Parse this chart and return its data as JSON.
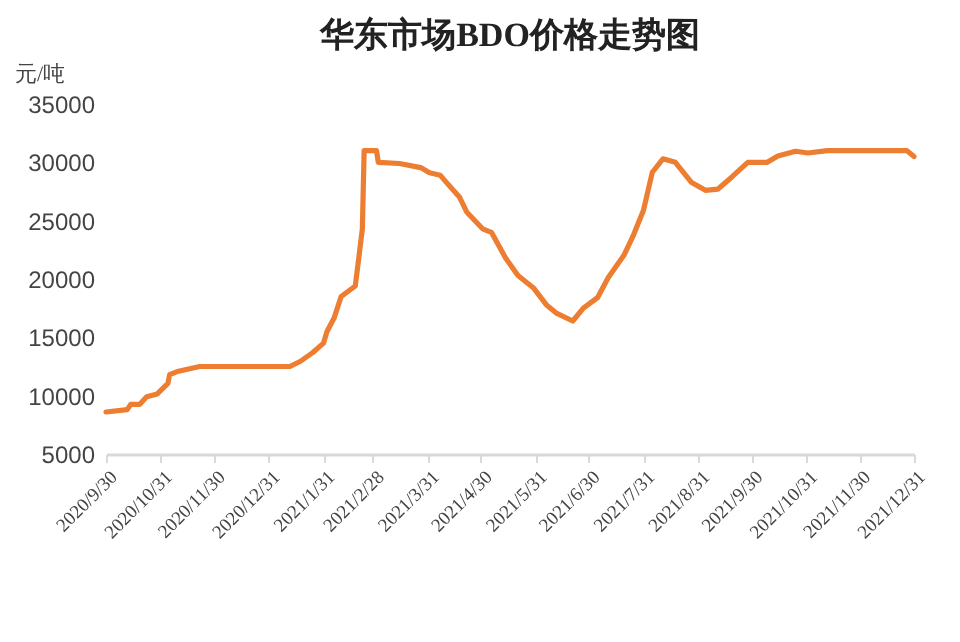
{
  "chart_data": {
    "type": "line",
    "title": "华东市场BDO价格走势图",
    "ylabel": "元/吨",
    "x": [
      "2020-09-30",
      "2020-10-12",
      "2020-10-14",
      "2020-10-19",
      "2020-10-23",
      "2020-10-29",
      "2020-11-04",
      "2020-11-05",
      "2020-11-10",
      "2020-11-22",
      "2021-01-12",
      "2021-01-18",
      "2021-01-25",
      "2021-01-31",
      "2021-02-02",
      "2021-02-06",
      "2021-02-10",
      "2021-02-18",
      "2021-02-22",
      "2021-02-23",
      "2021-03-02",
      "2021-03-03",
      "2021-03-15",
      "2021-03-27",
      "2021-04-01",
      "2021-04-07",
      "2021-04-11",
      "2021-04-18",
      "2021-04-22",
      "2021-05-01",
      "2021-05-06",
      "2021-05-14",
      "2021-05-21",
      "2021-05-30",
      "2021-06-06",
      "2021-06-12",
      "2021-06-21",
      "2021-06-27",
      "2021-07-05",
      "2021-07-11",
      "2021-07-20",
      "2021-07-25",
      "2021-07-31",
      "2021-08-05",
      "2021-08-11",
      "2021-08-18",
      "2021-08-27",
      "2021-09-04",
      "2021-09-11",
      "2021-09-19",
      "2021-09-28",
      "2021-10-09",
      "2021-10-15",
      "2021-10-25",
      "2021-11-01",
      "2021-11-12",
      "2021-12-27",
      "2021-12-31"
    ],
    "series": [
      {
        "color": "#ed7d31",
        "values": [
          8600,
          8800,
          9250,
          9250,
          9900,
          10150,
          11050,
          11800,
          12100,
          12500,
          12500,
          12950,
          13700,
          14500,
          15500,
          16650,
          18500,
          19400,
          24300,
          31000,
          31000,
          30000,
          29900,
          29550,
          29100,
          28900,
          28200,
          27000,
          25750,
          24300,
          24000,
          21800,
          20300,
          19200,
          17800,
          17050,
          16400,
          17500,
          18400,
          20100,
          22050,
          23650,
          25900,
          29150,
          30300,
          30000,
          28300,
          27600,
          27700,
          28750,
          30000,
          30000,
          30550,
          30950,
          30800,
          31000,
          31000,
          30500
        ]
      }
    ],
    "xlim": [
      "2020-09-30",
      "2021-12-31"
    ],
    "xticks": [
      {
        "value": "2020-09-30",
        "label": "2020/9/30"
      },
      {
        "value": "2020-10-31",
        "label": "2020/10/31"
      },
      {
        "value": "2020-11-30",
        "label": "2020/11/30"
      },
      {
        "value": "2020-12-31",
        "label": "2020/12/31"
      },
      {
        "value": "2021-01-31",
        "label": "2021/1/31"
      },
      {
        "value": "2021-02-28",
        "label": "2021/2/28"
      },
      {
        "value": "2021-03-31",
        "label": "2021/3/31"
      },
      {
        "value": "2021-04-30",
        "label": "2021/4/30"
      },
      {
        "value": "2021-05-31",
        "label": "2021/5/31"
      },
      {
        "value": "2021-06-30",
        "label": "2021/6/30"
      },
      {
        "value": "2021-07-31",
        "label": "2021/7/31"
      },
      {
        "value": "2021-08-31",
        "label": "2021/8/31"
      },
      {
        "value": "2021-09-30",
        "label": "2021/9/30"
      },
      {
        "value": "2021-10-31",
        "label": "2021/10/31"
      },
      {
        "value": "2021-11-30",
        "label": "2021/11/30"
      },
      {
        "value": "2021-12-31",
        "label": "2021/12/31"
      }
    ],
    "ylim": [
      5000,
      35000
    ],
    "yticks": [
      5000,
      10000,
      15000,
      20000,
      25000,
      30000,
      35000
    ],
    "grid": false,
    "marker": "none",
    "line_style": "solid"
  }
}
